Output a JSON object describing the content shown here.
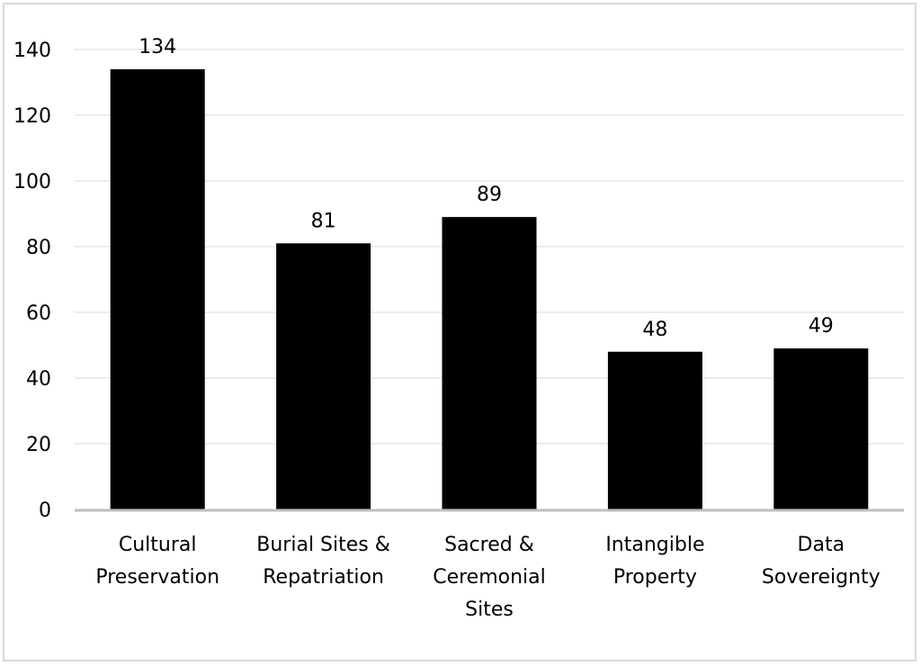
{
  "chart_data": {
    "type": "bar",
    "title": "",
    "xlabel": "",
    "ylabel": "",
    "categories": [
      [
        "Cultural",
        "Preservation"
      ],
      [
        "Burial Sites &",
        "Repatriation"
      ],
      [
        "Sacred &",
        "Ceremonial",
        "Sites"
      ],
      [
        "Intangible",
        "Property"
      ],
      [
        "Data",
        "Sovereignty"
      ]
    ],
    "values": [
      134,
      81,
      89,
      48,
      49
    ],
    "data_labels": [
      "134",
      "81",
      "89",
      "48",
      "49"
    ],
    "ylim": [
      0,
      140
    ],
    "yticks": [
      0,
      20,
      40,
      60,
      80,
      100,
      120,
      140
    ],
    "grid": true,
    "legend": "none",
    "colors": {
      "bar": "#000000",
      "grid": "#ececec",
      "axis": "#bfbfbf",
      "border": "#d9d9d9"
    }
  }
}
